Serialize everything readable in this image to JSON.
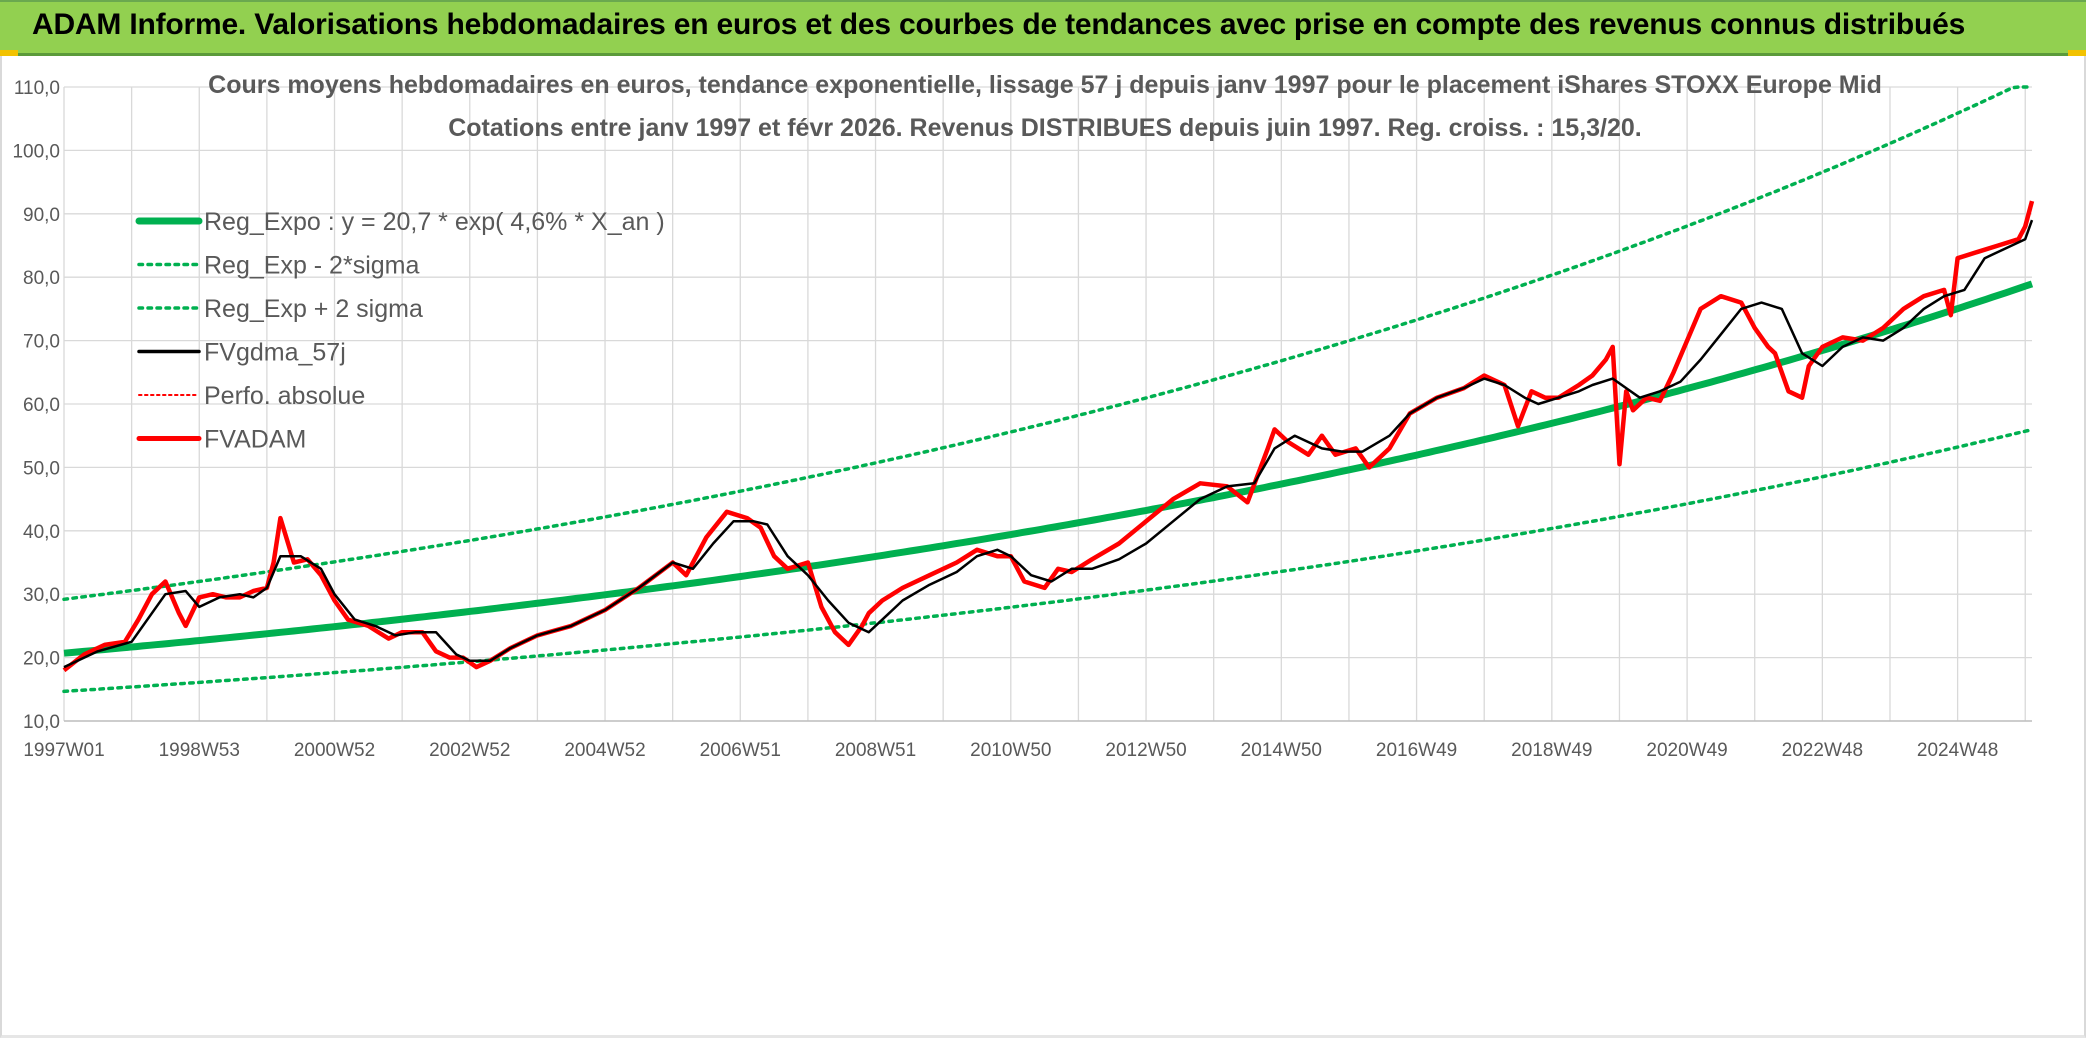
{
  "header": {
    "title": "ADAM Informe. Valorisations hebdomadaires en euros et des courbes de tendances avec prise en compte des revenus connus distribués"
  },
  "colors": {
    "header_bg": "#92d050",
    "trend": "#00b050",
    "fv_gdma": "#000000",
    "fvadam": "#ff0000",
    "perfo": "#ff0000",
    "grid": "#d9d9d9",
    "text": "#595959"
  },
  "chart_data": {
    "type": "line",
    "title_line1": "Cours moyens hebdomadaires en euros, tendance exponentielle, lissage 57 j depuis janv 1997 pour le placement iShares STOXX Europe Mid",
    "title_line2": "Cotations entre janv 1997 et févr 2026. Revenus DISTRIBUES depuis juin 1997. Reg. croiss. : 15,3/20.",
    "xlabel": "",
    "ylabel": "",
    "ylim": [
      10,
      110
    ],
    "y_ticks": [
      "10,0",
      "20,0",
      "30,0",
      "40,0",
      "50,0",
      "60,0",
      "70,0",
      "80,0",
      "90,0",
      "100,0",
      "110,0"
    ],
    "x_range": [
      1997.0,
      2026.1
    ],
    "x_ticks": [
      {
        "label": "1997W01",
        "year": 1997.0
      },
      {
        "label": "1998W53",
        "year": 1999.0
      },
      {
        "label": "2000W52",
        "year": 2001.0
      },
      {
        "label": "2002W52",
        "year": 2003.0
      },
      {
        "label": "2004W52",
        "year": 2005.0
      },
      {
        "label": "2006W51",
        "year": 2007.0
      },
      {
        "label": "2008W51",
        "year": 2009.0
      },
      {
        "label": "2010W50",
        "year": 2011.0
      },
      {
        "label": "2012W50",
        "year": 2013.0
      },
      {
        "label": "2014W50",
        "year": 2015.0
      },
      {
        "label": "2016W49",
        "year": 2017.0
      },
      {
        "label": "2018W49",
        "year": 2019.0
      },
      {
        "label": "2020W49",
        "year": 2021.0
      },
      {
        "label": "2022W48",
        "year": 2023.0
      },
      {
        "label": "2024W48",
        "year": 2025.0
      }
    ],
    "grid": true,
    "legend_position": "top-left",
    "regression": {
      "a": 20.7,
      "growth_rate": 0.046,
      "sigma_log": 0.172
    },
    "series": [
      {
        "name": "Reg_Expo : y = 20,7 * exp( 4,6% *  X_an )",
        "style": "thick-solid",
        "color": "#00b050"
      },
      {
        "name": "Reg_Exp - 2*sigma",
        "style": "dotted",
        "color": "#00b050"
      },
      {
        "name": "Reg_Exp + 2 sigma",
        "style": "dotted",
        "color": "#00b050"
      },
      {
        "name": "FVgdma_57j",
        "style": "solid",
        "color": "#000000",
        "x": [
          1997.0,
          1997.5,
          1998.0,
          1998.3,
          1998.5,
          1998.8,
          1999.0,
          1999.3,
          1999.6,
          1999.8,
          2000.0,
          2000.2,
          2000.5,
          2000.8,
          2001.0,
          2001.3,
          2001.6,
          2001.9,
          2002.2,
          2002.5,
          2002.8,
          2003.0,
          2003.3,
          2003.6,
          2004.0,
          2004.5,
          2005.0,
          2005.5,
          2006.0,
          2006.3,
          2006.6,
          2006.9,
          2007.2,
          2007.4,
          2007.7,
          2008.0,
          2008.3,
          2008.6,
          2008.9,
          2009.1,
          2009.4,
          2009.8,
          2010.2,
          2010.5,
          2010.8,
          2011.0,
          2011.3,
          2011.6,
          2011.9,
          2012.2,
          2012.6,
          2013.0,
          2013.4,
          2013.8,
          2014.2,
          2014.6,
          2014.9,
          2015.2,
          2015.6,
          2015.9,
          2016.2,
          2016.6,
          2016.9,
          2017.3,
          2017.7,
          2018.0,
          2018.3,
          2018.6,
          2018.8,
          2019.1,
          2019.4,
          2019.6,
          2019.9,
          2020.1,
          2020.3,
          2020.6,
          2020.9,
          2021.2,
          2021.5,
          2021.8,
          2022.1,
          2022.4,
          2022.7,
          2023.0,
          2023.3,
          2023.6,
          2023.9,
          2024.2,
          2024.5,
          2024.8,
          2025.1,
          2025.4,
          2025.7,
          2026.0,
          2026.1
        ],
        "y": [
          18.5,
          21,
          22.5,
          27,
          30,
          30.5,
          28,
          29.5,
          30,
          29.5,
          31,
          36,
          36,
          34,
          30,
          26,
          25,
          23.5,
          24,
          24,
          20.5,
          19.5,
          19.5,
          21.5,
          23.5,
          25,
          27.5,
          31,
          35,
          34,
          38,
          41.5,
          41.5,
          41,
          36,
          33,
          29,
          25.5,
          24,
          26,
          29,
          31.5,
          33.5,
          36,
          37,
          36,
          33,
          32,
          34,
          34,
          35.5,
          38,
          41.5,
          45,
          47,
          47.5,
          53,
          55,
          53,
          52.5,
          52.5,
          55,
          58.5,
          61,
          62.5,
          64,
          63,
          61,
          60,
          61,
          62,
          63,
          64,
          62.5,
          61,
          62,
          63.5,
          67,
          71,
          75,
          76,
          75,
          68,
          66,
          69,
          70.5,
          70,
          72,
          75,
          77,
          78,
          83,
          84.5,
          86,
          89
        ]
      },
      {
        "name": "Perfo. absolue",
        "style": "dotted-thin",
        "color": "#ff0000"
      },
      {
        "name": "FVADAM",
        "style": "solid-thick",
        "color": "#ff0000",
        "x": [
          1997.0,
          1997.3,
          1997.6,
          1997.9,
          1998.1,
          1998.3,
          1998.5,
          1998.7,
          1998.8,
          1999.0,
          1999.2,
          1999.4,
          1999.6,
          1999.8,
          2000.0,
          2000.1,
          2000.2,
          2000.4,
          2000.6,
          2000.8,
          2001.0,
          2001.2,
          2001.5,
          2001.8,
          2002.0,
          2002.3,
          2002.5,
          2002.7,
          2002.9,
          2003.1,
          2003.3,
          2003.6,
          2004.0,
          2004.5,
          2005.0,
          2005.5,
          2006.0,
          2006.2,
          2006.5,
          2006.8,
          2007.1,
          2007.3,
          2007.5,
          2007.7,
          2008.0,
          2008.2,
          2008.4,
          2008.6,
          2008.8,
          2008.9,
          2009.1,
          2009.4,
          2009.8,
          2010.2,
          2010.5,
          2010.8,
          2011.0,
          2011.2,
          2011.5,
          2011.7,
          2011.9,
          2012.2,
          2012.6,
          2013.0,
          2013.4,
          2013.8,
          2014.2,
          2014.5,
          2014.8,
          2014.9,
          2015.1,
          2015.4,
          2015.6,
          2015.8,
          2016.1,
          2016.3,
          2016.6,
          2016.9,
          2017.3,
          2017.7,
          2018.0,
          2018.3,
          2018.5,
          2018.7,
          2018.9,
          2019.1,
          2019.4,
          2019.6,
          2019.8,
          2019.9,
          2020.0,
          2020.1,
          2020.2,
          2020.4,
          2020.6,
          2020.8,
          2021.0,
          2021.2,
          2021.5,
          2021.8,
          2022.0,
          2022.2,
          2022.3,
          2022.5,
          2022.7,
          2022.8,
          2023.0,
          2023.3,
          2023.6,
          2023.9,
          2024.2,
          2024.5,
          2024.8,
          2024.9,
          2025.0,
          2025.3,
          2025.6,
          2025.9,
          2026.0,
          2026.1
        ],
        "y": [
          18,
          20.5,
          22,
          22.5,
          26,
          30,
          32,
          27,
          25,
          29.5,
          30,
          29.5,
          29.5,
          30.5,
          31,
          35,
          42,
          35,
          35.5,
          33,
          29,
          26,
          25,
          23,
          24,
          24,
          21,
          20,
          20,
          18.5,
          19.5,
          21.5,
          23.5,
          25,
          27.5,
          31,
          35,
          33,
          39,
          43,
          42,
          40.5,
          36,
          34,
          35,
          28,
          24,
          22,
          25,
          27,
          29,
          31,
          33,
          35,
          37,
          36,
          36,
          32,
          31,
          34,
          33.5,
          35.5,
          38,
          41.5,
          45,
          47.5,
          47,
          44.5,
          53,
          56,
          54,
          52,
          55,
          52,
          53,
          50,
          53,
          58.5,
          61,
          62.5,
          64.5,
          63,
          56.5,
          62,
          61,
          61,
          63,
          64.5,
          67,
          69,
          50.5,
          62,
          59,
          61,
          60.5,
          65,
          70,
          75,
          77,
          76,
          72,
          69,
          68,
          62,
          61,
          66,
          69,
          70.5,
          70,
          72,
          75,
          77,
          78,
          74,
          83,
          84,
          85,
          86,
          88,
          92
        ]
      }
    ]
  }
}
